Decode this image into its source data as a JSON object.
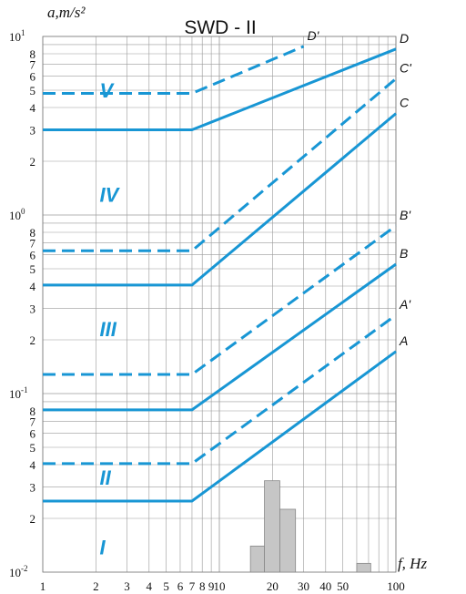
{
  "chart_data": {
    "type": "line",
    "title": "SWD - II",
    "ylabel": "a,m/s²",
    "xlabel": "f, Hz",
    "x_scale": "log",
    "y_scale": "log",
    "xlim": [
      1,
      100
    ],
    "ylim": [
      0.01,
      10
    ],
    "x_ticks": [
      {
        "value": 1,
        "label": "1"
      },
      {
        "value": 2,
        "label": "2"
      },
      {
        "value": 3,
        "label": "3"
      },
      {
        "value": 4,
        "label": "4"
      },
      {
        "value": 5,
        "label": "5"
      },
      {
        "value": 6,
        "label": "6"
      },
      {
        "value": 7,
        "label": "7"
      },
      {
        "value": 8,
        "label": "8"
      },
      {
        "value": 9,
        "label": "9"
      },
      {
        "value": 10,
        "label": "10"
      },
      {
        "value": 20,
        "label": "20"
      },
      {
        "value": 30,
        "label": "30"
      },
      {
        "value": 40,
        "label": "40"
      },
      {
        "value": 50,
        "label": "50"
      },
      {
        "value": 100,
        "label": "100"
      }
    ],
    "y_decades": [
      {
        "value": 0.01,
        "base": "10",
        "exp": "-2"
      },
      {
        "value": 0.1,
        "base": "10",
        "exp": "-1"
      },
      {
        "value": 1,
        "base": "10",
        "exp": "0"
      },
      {
        "value": 10,
        "base": "10",
        "exp": "1"
      }
    ],
    "y_minor_labels": [
      "2",
      "3",
      "4",
      "5",
      "6",
      "7",
      "8"
    ],
    "series": [
      {
        "name": "A",
        "style": "solid",
        "points": [
          [
            1,
            0.025
          ],
          [
            7,
            0.025
          ],
          [
            100,
            0.172
          ]
        ]
      },
      {
        "name": "A'",
        "style": "dashed",
        "points": [
          [
            1,
            0.0405
          ],
          [
            7,
            0.0405
          ],
          [
            100,
            0.275
          ]
        ]
      },
      {
        "name": "B",
        "style": "solid",
        "points": [
          [
            1,
            0.081
          ],
          [
            7,
            0.081
          ],
          [
            100,
            0.53
          ]
        ]
      },
      {
        "name": "B'",
        "style": "dashed",
        "points": [
          [
            1,
            0.128
          ],
          [
            7,
            0.128
          ],
          [
            100,
            0.87
          ]
        ]
      },
      {
        "name": "C",
        "style": "solid",
        "points": [
          [
            1,
            0.405
          ],
          [
            7,
            0.405
          ],
          [
            100,
            3.7
          ]
        ]
      },
      {
        "name": "C'",
        "style": "dashed",
        "points": [
          [
            1,
            0.63
          ],
          [
            7,
            0.63
          ],
          [
            100,
            5.8
          ]
        ]
      },
      {
        "name": "D",
        "style": "solid",
        "points": [
          [
            1,
            3.0
          ],
          [
            7,
            3.0
          ],
          [
            100,
            8.5
          ]
        ]
      },
      {
        "name": "D'",
        "style": "dashed",
        "points": [
          [
            1,
            4.8
          ],
          [
            7,
            4.8
          ],
          [
            30,
            8.8
          ]
        ]
      }
    ],
    "zones": [
      {
        "label": "V",
        "x": 2.1,
        "y": 5.0
      },
      {
        "label": "IV",
        "x": 2.1,
        "y": 1.3
      },
      {
        "label": "III",
        "x": 2.1,
        "y": 0.23
      },
      {
        "label": "II",
        "x": 2.1,
        "y": 0.034
      },
      {
        "label": "I",
        "x": 2.1,
        "y": 0.0138
      }
    ],
    "histogram": [
      {
        "x0": 15,
        "x1": 18,
        "value": 0.014
      },
      {
        "x0": 18,
        "x1": 22,
        "value": 0.0325
      },
      {
        "x0": 22,
        "x1": 27,
        "value": 0.0225
      },
      {
        "x0": 60,
        "x1": 72,
        "value": 0.0112
      }
    ],
    "grid": true
  },
  "colors": {
    "line": "#1896d4",
    "zone": "#1896d4",
    "grid": "#9a9a9a",
    "bar_fill": "#c6c6c6",
    "bar_stroke": "#888888"
  }
}
